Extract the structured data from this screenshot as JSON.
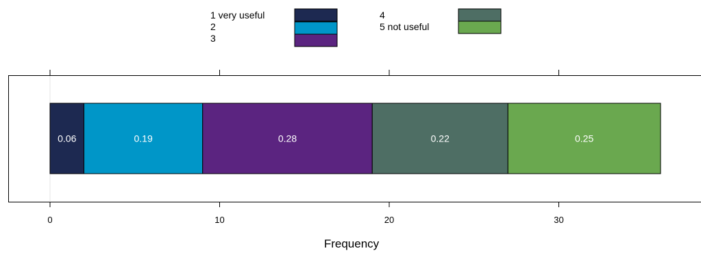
{
  "chart_data": {
    "type": "bar",
    "orientation": "horizontal",
    "stacked": true,
    "categories": [
      ""
    ],
    "series": [
      {
        "name": "1 very useful",
        "values": [
          2
        ],
        "label": "0.06",
        "color": "#1d2951"
      },
      {
        "name": "2",
        "values": [
          7
        ],
        "label": "0.19",
        "color": "#0096c8"
      },
      {
        "name": "3",
        "values": [
          10
        ],
        "label": "0.28",
        "color": "#5b2480"
      },
      {
        "name": "4",
        "values": [
          8
        ],
        "label": "0.22",
        "color": "#4e6e64"
      },
      {
        "name": "5 not useful",
        "values": [
          9
        ],
        "label": "0.25",
        "color": "#6aa84f"
      }
    ],
    "xlabel": "Frequency",
    "ylabel": "",
    "title": "",
    "xlim": [
      0,
      38
    ],
    "xticks": [
      0,
      10,
      20,
      30
    ],
    "grid": false,
    "legend_position": "top"
  }
}
